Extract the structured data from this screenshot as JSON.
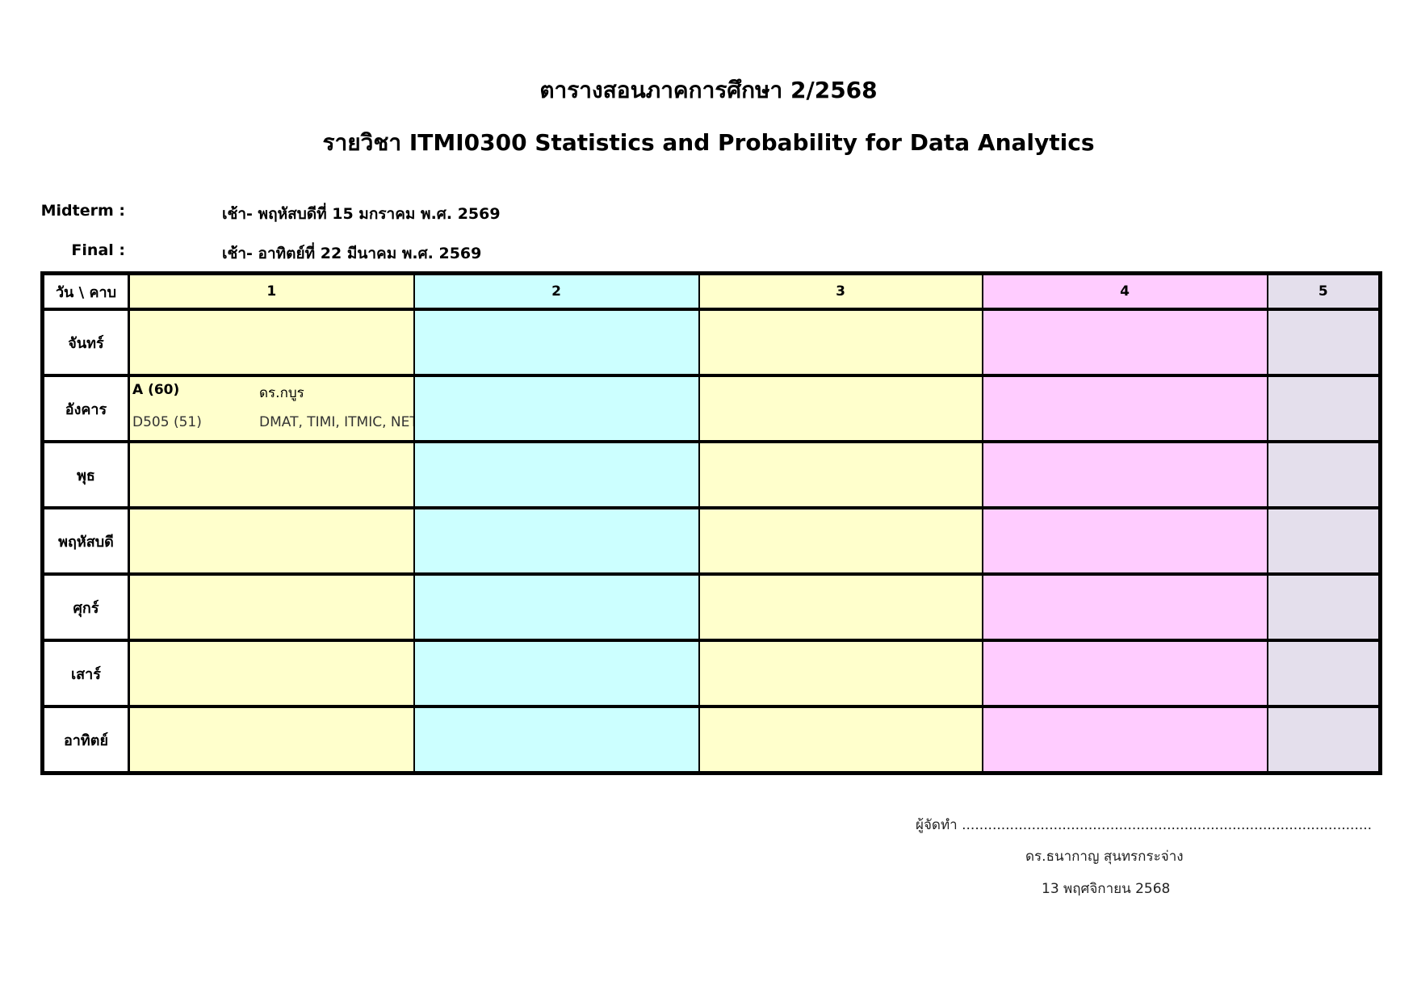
{
  "header": {
    "title": "ตารางสอนภาคการศึกษา 2/2568",
    "subtitle": "รายวิชา ITMI0300 Statistics and Probability for Data Analytics"
  },
  "exams": [
    {
      "label": "Midterm :",
      "value": "เช้า- พฤหัสบดีที่ 15 มกราคม พ.ศ. 2569"
    },
    {
      "label": "Final :",
      "value": "เช้า- อาทิตย์ที่ 22 มีนาคม พ.ศ. 2569"
    }
  ],
  "table": {
    "corner": "วัน \\ คาบ",
    "periods": [
      "1",
      "2",
      "3",
      "4",
      "5"
    ],
    "period_colors": [
      "#FFFFCC",
      "#CCFFFF",
      "#FFFFCC",
      "#FFCCFF",
      "#E4DFEC"
    ],
    "days": [
      "จันทร์",
      "อังคาร",
      "พุธ",
      "พฤหัสบดี",
      "ศุกร์",
      "เสาร์",
      "อาทิตย์"
    ],
    "entry": {
      "day": "อังคาร",
      "period": "1",
      "section": "A (60)",
      "instructor": "ดร.กบูร",
      "room": "D505 (51)",
      "programs": "DMAT, TIMI, ITMIC, NETC"
    }
  },
  "signature": {
    "label": "ผู้จัดทำ ..............................................................................................",
    "name": "ดร.ธนากาญ สุนทรกระจ่าง",
    "date": "13 พฤศจิกายน 2568"
  }
}
